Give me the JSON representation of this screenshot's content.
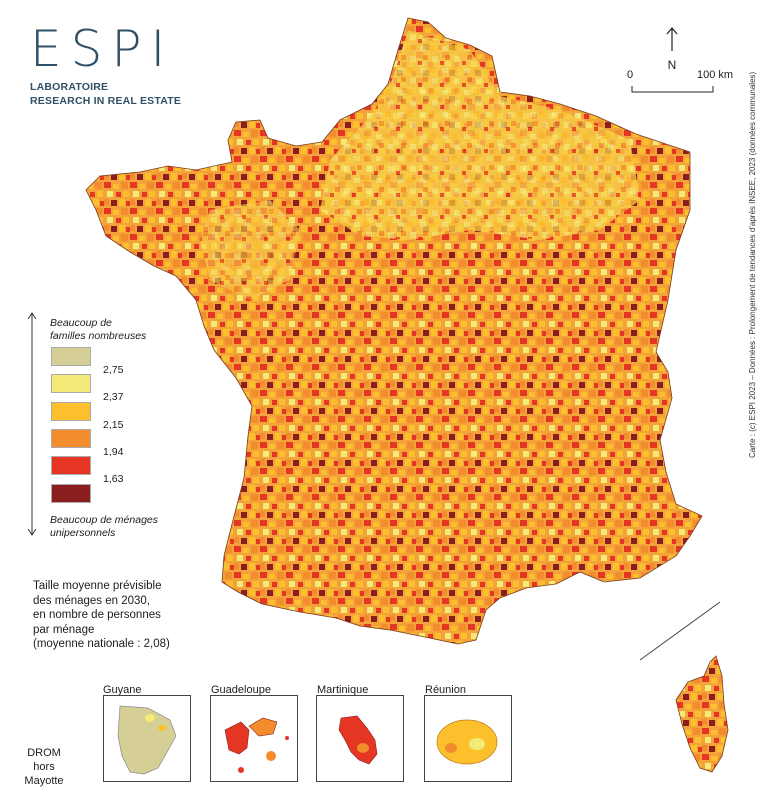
{
  "brand": {
    "logo_word": "ESPI",
    "line1": "LABORATOIRE",
    "line2": "RESEARCH IN REAL ESTATE"
  },
  "north": {
    "label": "N"
  },
  "scale": {
    "zero": "0",
    "max": "100 km"
  },
  "credit": "Carte : (c) ESPI 2023 – Données : Prolongement de tendances d'après INSEE, 2023 (données communales)",
  "legend": {
    "top_label": [
      "Beaucoup de",
      "familles nombreuses"
    ],
    "bottom_label": [
      "Beaucoup de ménages",
      "unipersonnels"
    ],
    "classes": [
      {
        "color": "#d5cf96"
      },
      {
        "color": "#f4ea78"
      },
      {
        "color": "#fbc02c"
      },
      {
        "color": "#f28c2c"
      },
      {
        "color": "#e53523"
      },
      {
        "color": "#8a1e1e"
      }
    ],
    "breaks": [
      "2,75",
      "2,37",
      "2,15",
      "1,94",
      "1,63"
    ]
  },
  "caption": [
    "Taille moyenne prévisible",
    "des ménages en 2030,",
    "en nombre de personnes",
    "par ménage",
    "(moyenne nationale : 2,08)"
  ],
  "drom": {
    "label": [
      "DROM",
      "hors",
      "Mayotte"
    ],
    "territories": [
      {
        "name": "Guyane"
      },
      {
        "name": "Guadeloupe"
      },
      {
        "name": "Martinique"
      },
      {
        "name": "Réunion"
      }
    ]
  },
  "map_layers": [
    "France métropolitaine",
    "Corse"
  ]
}
